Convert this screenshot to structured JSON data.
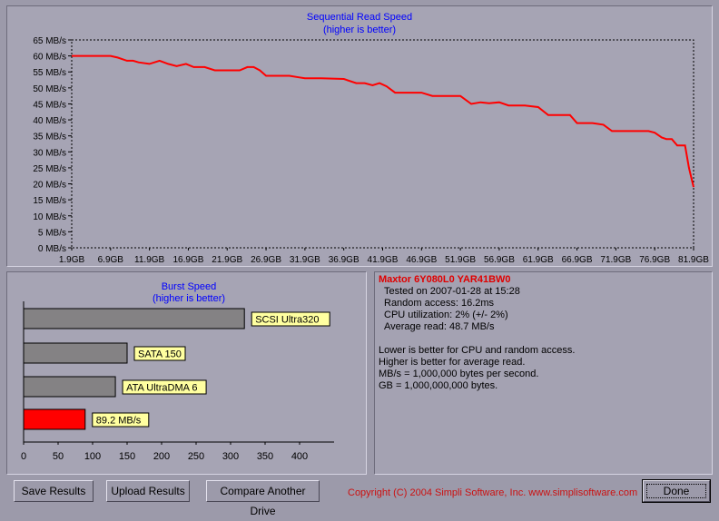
{
  "sequential": {
    "title": "Sequential Read Speed",
    "subtitle": "(higher is better)"
  },
  "burst": {
    "title": "Burst Speed",
    "subtitle": "(higher is better)"
  },
  "info": {
    "drive": "Maxtor 6Y080L0 YAR41BW0",
    "tested": "Tested on 2007-01-28 at 15:28",
    "random_access": "Random access: 16.2ms",
    "cpu": "CPU utilization: 2% (+/- 2%)",
    "average_read": "Average read: 48.7 MB/s",
    "note1": "Lower is better for CPU and random access.",
    "note2": "Higher is better for average read.",
    "note3": "MB/s = 1,000,000 bytes per second.",
    "note4": "GB = 1,000,000,000 bytes."
  },
  "buttons": {
    "save": "Save Results",
    "upload": "Upload Results",
    "compare": "Compare Another Drive",
    "done": "Done"
  },
  "copyright": "Copyright (C) 2004 Simpli Software, Inc. www.simplisoftware.com",
  "colors": {
    "line": "#ff0000",
    "bar_reference": "#848284",
    "bar_tested": "#ff0000",
    "label_bg": "#ffffa0",
    "title": "#0000ff"
  },
  "chart_data": [
    {
      "type": "line",
      "title": "Sequential Read Speed",
      "subtitle": "(higher is better)",
      "xlabel": "",
      "ylabel": "",
      "x_unit": "GB",
      "y_unit": "MB/s",
      "xlim": [
        1.9,
        81.9
      ],
      "ylim": [
        0,
        65
      ],
      "y_ticks": [
        "0 MB/s",
        "5 MB/s",
        "10 MB/s",
        "15 MB/s",
        "20 MB/s",
        "25 MB/s",
        "30 MB/s",
        "35 MB/s",
        "40 MB/s",
        "45 MB/s",
        "50 MB/s",
        "55 MB/s",
        "60 MB/s",
        "65 MB/s"
      ],
      "x_ticks": [
        "1.9GB",
        "6.9GB",
        "11.9GB",
        "16.9GB",
        "21.9GB",
        "26.9GB",
        "31.9GB",
        "36.9GB",
        "41.9GB",
        "46.9GB",
        "51.9GB",
        "56.9GB",
        "61.9GB",
        "66.9GB",
        "71.9GB",
        "76.9GB",
        "81.9GB"
      ],
      "grid": true,
      "series": [
        {
          "x": [
            1.9,
            4,
            6.9,
            7.8,
            9,
            9.8,
            10.5,
            11.9,
            13.2,
            14.3,
            15.4,
            16.6,
            17.6,
            19,
            20.3,
            21.9,
            23.5,
            24.5,
            25.3,
            26.1,
            26.9,
            28.5,
            29.9,
            31.1,
            31.9,
            34,
            36.9,
            38.5,
            39.6,
            40.6,
            41.5,
            42.4,
            43.5,
            44.5,
            46.9,
            48.3,
            49.9,
            51.9,
            53.3,
            54.5,
            55.6,
            56.9,
            58.1,
            59.3,
            60.2,
            61.9,
            63.2,
            64.5,
            66,
            66.9,
            68.9,
            70.3,
            71.4,
            71.9,
            73.5,
            75.3,
            76.1,
            76.9,
            77.8,
            78.4,
            79.1,
            79.8,
            80.2,
            80.8,
            81.3,
            81.9
          ],
          "y": [
            60,
            60,
            60,
            59.5,
            58.5,
            58.5,
            58,
            57.5,
            58.5,
            57.5,
            56.8,
            57.5,
            56.5,
            56.5,
            55.5,
            55.5,
            55.5,
            56.5,
            56.5,
            55.5,
            53.8,
            53.8,
            53.8,
            53.3,
            53,
            53,
            52.8,
            51.5,
            51.5,
            50.8,
            51.5,
            50.5,
            48.5,
            48.5,
            48.5,
            47.5,
            47.5,
            47.5,
            45,
            45.5,
            45.2,
            45.5,
            44.5,
            44.5,
            44.5,
            44,
            41.5,
            41.5,
            41.5,
            39,
            39,
            38.5,
            36.5,
            36.5,
            36.5,
            36.5,
            36.5,
            36,
            34.5,
            34,
            34,
            32,
            32,
            32,
            25,
            19
          ]
        }
      ]
    },
    {
      "type": "bar",
      "orientation": "horizontal",
      "title": "Burst Speed",
      "subtitle": "(higher is better)",
      "categories": [
        "SCSI Ultra320",
        "SATA 150",
        "ATA UltraDMA 6",
        "89.2 MB/s"
      ],
      "values": [
        320,
        150,
        133,
        89.2
      ],
      "highlight_index": 3,
      "xlim": [
        0,
        450
      ],
      "x_ticks": [
        "0",
        "50",
        "100",
        "150",
        "200",
        "250",
        "300",
        "350",
        "400"
      ],
      "grid": false
    }
  ]
}
